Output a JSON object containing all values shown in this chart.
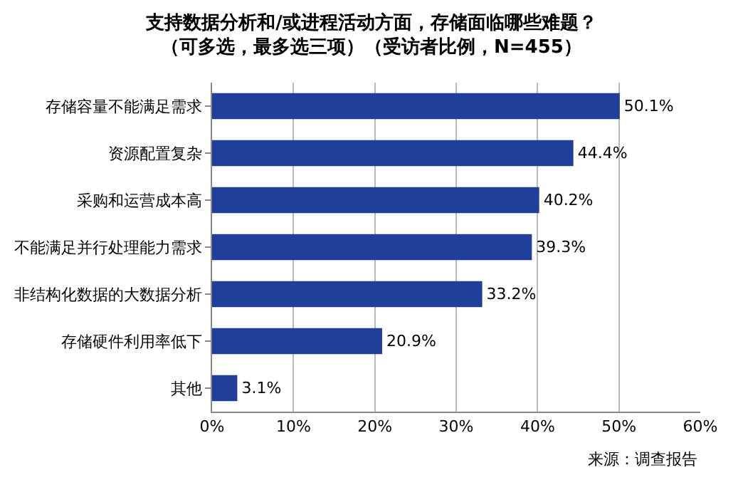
{
  "chart_data": {
    "type": "bar",
    "orientation": "horizontal",
    "title": "支持数据分析和/或进程活动方面，存储面临哪些难题？",
    "subtitle": "（可多选，最多选三项）（受访者比例，N=455）",
    "categories": [
      "存储容量不能满足需求",
      "资源配置复杂",
      "采购和运营成本高",
      "不能满足并行处理能力需求",
      "非结构化数据的大数据分析",
      "存储硬件利用率低下",
      "其他"
    ],
    "values": [
      50.1,
      44.4,
      40.2,
      39.3,
      33.2,
      20.9,
      3.1
    ],
    "value_labels": [
      "50.1%",
      "44.4%",
      "40.2%",
      "39.3%",
      "33.2%",
      "20.9%",
      "3.1%"
    ],
    "color": "#1f3f9a",
    "xlim": [
      0,
      60
    ],
    "xticks": [
      {
        "value": 0,
        "label": "0%"
      },
      {
        "value": 10,
        "label": "10%"
      },
      {
        "value": 20,
        "label": "20%"
      },
      {
        "value": 30,
        "label": "30%"
      },
      {
        "value": 40,
        "label": "40%"
      },
      {
        "value": 50,
        "label": "50%"
      },
      {
        "value": 60,
        "label": "60%"
      }
    ],
    "grid": "x",
    "annotations": [
      "来源：调查报告"
    ]
  }
}
